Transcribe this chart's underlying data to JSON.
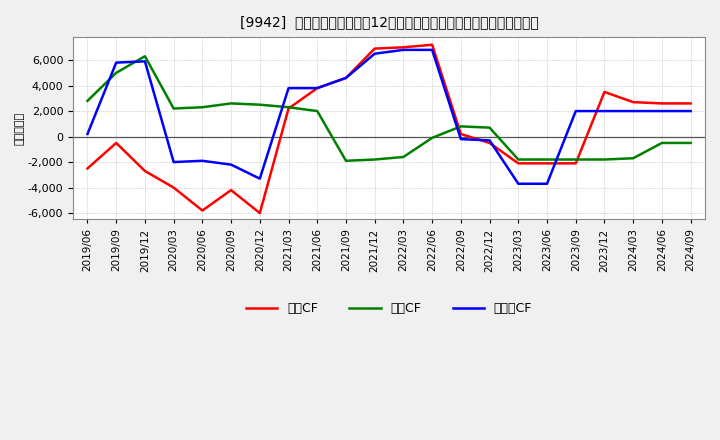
{
  "title": "[9942]  キャッシュフローの12か月移動合計の対前年同期増減額の推移",
  "ylabel": "（百万円）",
  "background_color": "#f0f0f0",
  "plot_bg_color": "#ffffff",
  "grid_color": "#aaaaaa",
  "x_labels": [
    "2019/06",
    "2019/09",
    "2019/12",
    "2020/03",
    "2020/06",
    "2020/09",
    "2020/12",
    "2021/03",
    "2021/06",
    "2021/09",
    "2021/12",
    "2022/03",
    "2022/06",
    "2022/09",
    "2022/12",
    "2023/03",
    "2023/06",
    "2023/09",
    "2023/12",
    "2024/03",
    "2024/06",
    "2024/09"
  ],
  "operating_cf": [
    -2500,
    -500,
    -2700,
    -4000,
    -5800,
    -4200,
    -6000,
    2200,
    3800,
    4600,
    6900,
    7000,
    7200,
    200,
    -500,
    -2100,
    -2100,
    -2100,
    3500,
    2700,
    2600,
    2600
  ],
  "investing_cf": [
    2800,
    5000,
    6300,
    2200,
    2300,
    2600,
    2500,
    2300,
    2000,
    -1900,
    -1800,
    -1600,
    -100,
    800,
    700,
    -1800,
    -1800,
    -1800,
    -1800,
    -1700,
    -500,
    -500
  ],
  "free_cf": [
    200,
    5800,
    5900,
    -2000,
    -1900,
    -2200,
    -3300,
    3800,
    3800,
    4600,
    6500,
    6800,
    6800,
    -200,
    -300,
    -3700,
    -3700,
    2000,
    2000,
    2000,
    2000,
    2000
  ],
  "operating_color": "#ff0000",
  "investing_color": "#008000",
  "free_color": "#0000ff",
  "ylim": [
    -6500,
    7800
  ],
  "yticks": [
    -6000,
    -4000,
    -2000,
    0,
    2000,
    4000,
    6000
  ],
  "line_width": 1.8,
  "legend_labels": [
    "営業CF",
    "投資CF",
    "フリーCF"
  ]
}
